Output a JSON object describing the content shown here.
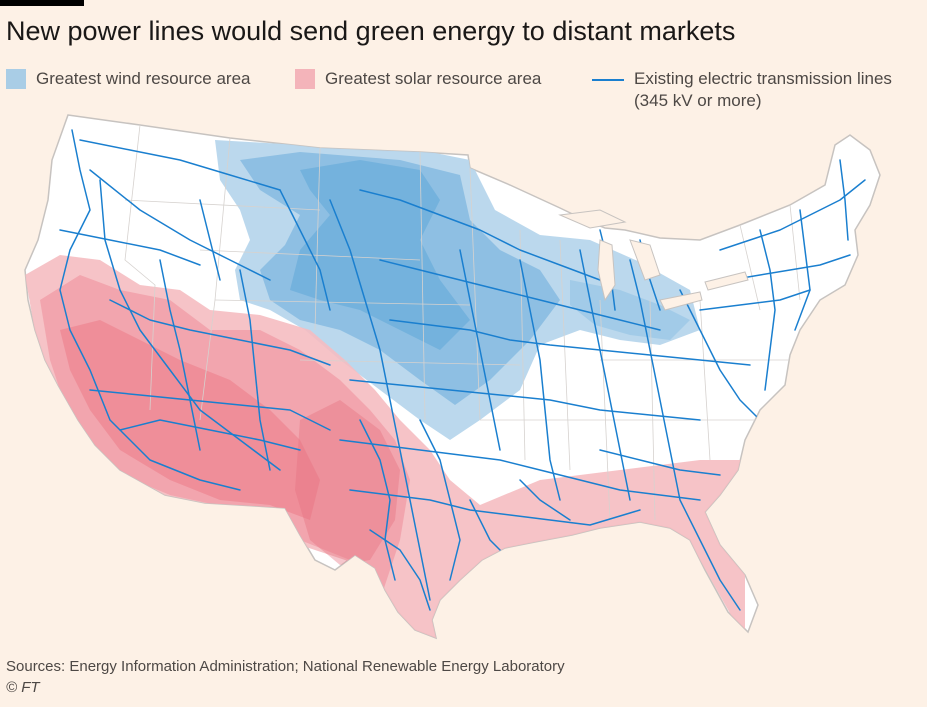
{
  "title": "New power lines would send green energy to distant markets",
  "legend": {
    "wind": {
      "label": "Greatest wind resource area",
      "color": "#8fbfe0"
    },
    "solar": {
      "label": "Greatest solar resource area",
      "color": "#f2a3ab"
    },
    "lines": {
      "label_line1": "Existing electric transmission lines",
      "label_line2": "(345 kV or more)",
      "color": "#1a7fcf"
    }
  },
  "footer": {
    "sources": "Sources: Energy Information Administration; National Renewable Energy Laboratory",
    "copyright": "© FT"
  },
  "colors": {
    "background": "#fdf1e6",
    "land": "#ffffff",
    "border": "#c7c3c0",
    "wind": "#5ea8d8",
    "solar": "#f08a96",
    "line": "#1a7fcf"
  }
}
